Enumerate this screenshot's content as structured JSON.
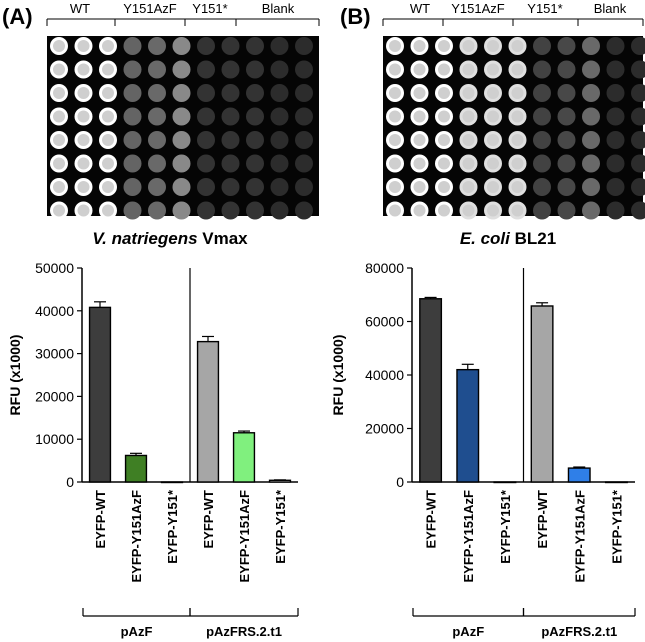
{
  "panels": [
    {
      "label": "(A)",
      "plate_columns": [
        "WT",
        "Y151AzF",
        "Y151*",
        "Blank"
      ],
      "organism_italic": "V. natriegens",
      "organism_suffix": " Vmax"
    },
    {
      "label": "(B)",
      "plate_columns": [
        "WT",
        "Y151AzF",
        "Y151*",
        "Blank"
      ],
      "organism_italic": "E. coli",
      "organism_suffix": " BL21"
    }
  ],
  "chart_data": [
    {
      "type": "bar",
      "ylabel": "RFU (x1000)",
      "ylim": [
        0,
        50000
      ],
      "yticks": [
        "0",
        "10000",
        "20000",
        "30000",
        "40000",
        "50000"
      ],
      "categories": [
        "EYFP-WT",
        "EYFP-Y151AzF",
        "EYFP-Y151*",
        "EYFP-WT",
        "EYFP-Y151AzF",
        "EYFP-Y151*"
      ],
      "values": [
        40800,
        6200,
        0,
        32800,
        11500,
        400
      ],
      "errors": [
        1300,
        500,
        0,
        1200,
        400,
        100
      ],
      "colors": [
        "#3d3d3d",
        "#3f7f24",
        "#ffffff",
        "#a6a6a6",
        "#80f07e",
        "#ffffff"
      ],
      "groups": [
        {
          "name": "pAzF",
          "range": [
            0,
            2
          ]
        },
        {
          "name": "pAzFRS.2.t1",
          "range": [
            3,
            5
          ]
        }
      ]
    },
    {
      "type": "bar",
      "ylabel": "RFU (x1000)",
      "ylim": [
        0,
        80000
      ],
      "yticks": [
        "0",
        "20000",
        "40000",
        "60000",
        "80000"
      ],
      "categories": [
        "EYFP-WT",
        "EYFP-Y151AzF",
        "EYFP-Y151*",
        "EYFP-WT",
        "EYFP-Y151AzF",
        "EYFP-Y151*"
      ],
      "values": [
        68500,
        42000,
        0,
        65800,
        5200,
        0
      ],
      "errors": [
        500,
        2000,
        0,
        1200,
        400,
        0
      ],
      "colors": [
        "#3d3d3d",
        "#1f4e8f",
        "#ffffff",
        "#a6a6a6",
        "#2f7fe8",
        "#ffffff"
      ],
      "groups": [
        {
          "name": "pAzF",
          "range": [
            0,
            2
          ]
        },
        {
          "name": "pAzFRS.2.t1",
          "range": [
            3,
            5
          ]
        }
      ]
    }
  ]
}
